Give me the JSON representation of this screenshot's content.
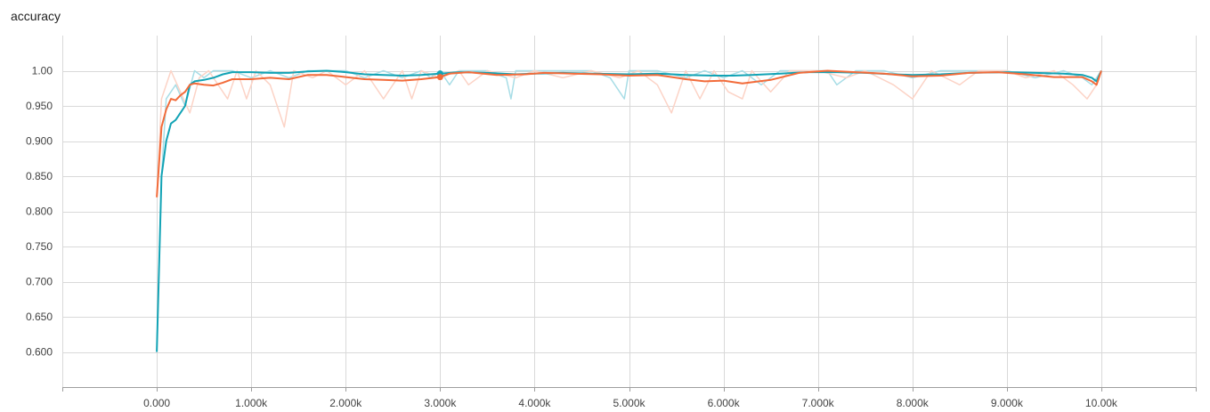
{
  "chart_data": {
    "type": "line",
    "title": "accuracy",
    "xlabel": "",
    "ylabel": "",
    "xlim": [
      -1000,
      11000
    ],
    "ylim": [
      0.55,
      1.05
    ],
    "grid": true,
    "legend": "none",
    "x_ticks": [
      {
        "value": 0,
        "label": "0.000"
      },
      {
        "value": 1000,
        "label": "1.000k"
      },
      {
        "value": 2000,
        "label": "2.000k"
      },
      {
        "value": 3000,
        "label": "3.000k"
      },
      {
        "value": 4000,
        "label": "4.000k"
      },
      {
        "value": 5000,
        "label": "5.000k"
      },
      {
        "value": 6000,
        "label": "6.000k"
      },
      {
        "value": 7000,
        "label": "7.000k"
      },
      {
        "value": 8000,
        "label": "8.000k"
      },
      {
        "value": 9000,
        "label": "9.000k"
      },
      {
        "value": 10000,
        "label": "10.00k"
      }
    ],
    "y_ticks": [
      {
        "value": 0.6,
        "label": "0.600"
      },
      {
        "value": 0.65,
        "label": "0.650"
      },
      {
        "value": 0.7,
        "label": "0.700"
      },
      {
        "value": 0.75,
        "label": "0.750"
      },
      {
        "value": 0.8,
        "label": "0.800"
      },
      {
        "value": 0.85,
        "label": "0.850"
      },
      {
        "value": 0.9,
        "label": "0.900"
      },
      {
        "value": 0.95,
        "label": "0.950"
      },
      {
        "value": 1.0,
        "label": "1.00"
      }
    ],
    "series": [
      {
        "color": "#12a3b5",
        "raw_color": "#a8dde6",
        "smoothed": [
          [
            0,
            0.6
          ],
          [
            50,
            0.85
          ],
          [
            100,
            0.9
          ],
          [
            150,
            0.925
          ],
          [
            200,
            0.93
          ],
          [
            250,
            0.94
          ],
          [
            300,
            0.95
          ],
          [
            350,
            0.98
          ],
          [
            400,
            0.985
          ],
          [
            500,
            0.987
          ],
          [
            600,
            0.99
          ],
          [
            700,
            0.995
          ],
          [
            800,
            0.998
          ],
          [
            1000,
            0.998
          ],
          [
            1200,
            0.997
          ],
          [
            1400,
            0.997
          ],
          [
            1600,
            0.999
          ],
          [
            1800,
            1.0
          ],
          [
            2000,
            0.998
          ],
          [
            2200,
            0.995
          ],
          [
            2400,
            0.994
          ],
          [
            2600,
            0.993
          ],
          [
            2800,
            0.994
          ],
          [
            3000,
            0.996
          ],
          [
            3200,
            0.998
          ],
          [
            3500,
            0.997
          ],
          [
            3800,
            0.995
          ],
          [
            4000,
            0.996
          ],
          [
            4300,
            0.997
          ],
          [
            4600,
            0.996
          ],
          [
            5000,
            0.995
          ],
          [
            5300,
            0.996
          ],
          [
            5600,
            0.994
          ],
          [
            5900,
            0.993
          ],
          [
            6100,
            0.993
          ],
          [
            6300,
            0.994
          ],
          [
            6600,
            0.996
          ],
          [
            6900,
            0.998
          ],
          [
            7200,
            0.998
          ],
          [
            7500,
            0.997
          ],
          [
            7800,
            0.995
          ],
          [
            8000,
            0.994
          ],
          [
            8300,
            0.995
          ],
          [
            8600,
            0.997
          ],
          [
            9000,
            0.998
          ],
          [
            9300,
            0.997
          ],
          [
            9600,
            0.996
          ],
          [
            9800,
            0.994
          ],
          [
            9900,
            0.99
          ],
          [
            9950,
            0.985
          ],
          [
            10000,
            1.0
          ]
        ],
        "raw": [
          [
            0,
            0.6
          ],
          [
            50,
            0.85
          ],
          [
            100,
            0.96
          ],
          [
            200,
            0.98
          ],
          [
            300,
            0.95
          ],
          [
            400,
            1.0
          ],
          [
            500,
            0.99
          ],
          [
            600,
            1.0
          ],
          [
            800,
            1.0
          ],
          [
            1000,
            0.99
          ],
          [
            1200,
            1.0
          ],
          [
            1400,
            0.99
          ],
          [
            1600,
            1.0
          ],
          [
            1800,
            1.0
          ],
          [
            2000,
            1.0
          ],
          [
            2200,
            0.99
          ],
          [
            2400,
            1.0
          ],
          [
            2600,
            0.99
          ],
          [
            2800,
            1.0
          ],
          [
            2900,
            0.99
          ],
          [
            3000,
            1.0
          ],
          [
            3100,
            0.98
          ],
          [
            3200,
            1.0
          ],
          [
            3500,
            1.0
          ],
          [
            3700,
            0.99
          ],
          [
            3750,
            0.96
          ],
          [
            3800,
            1.0
          ],
          [
            4000,
            1.0
          ],
          [
            4300,
            1.0
          ],
          [
            4600,
            1.0
          ],
          [
            4800,
            0.99
          ],
          [
            4950,
            0.96
          ],
          [
            5000,
            1.0
          ],
          [
            5300,
            1.0
          ],
          [
            5600,
            0.99
          ],
          [
            5800,
            1.0
          ],
          [
            6000,
            0.99
          ],
          [
            6200,
            1.0
          ],
          [
            6400,
            0.98
          ],
          [
            6600,
            1.0
          ],
          [
            6900,
            1.0
          ],
          [
            7100,
            1.0
          ],
          [
            7200,
            0.98
          ],
          [
            7400,
            1.0
          ],
          [
            7700,
            1.0
          ],
          [
            8000,
            0.99
          ],
          [
            8300,
            1.0
          ],
          [
            8600,
            1.0
          ],
          [
            9000,
            1.0
          ],
          [
            9300,
            0.99
          ],
          [
            9600,
            1.0
          ],
          [
            9800,
            0.99
          ],
          [
            9900,
            0.98
          ],
          [
            10000,
            1.0
          ]
        ]
      },
      {
        "color": "#f26b3a",
        "raw_color": "#fcd3c6",
        "smoothed": [
          [
            0,
            0.82
          ],
          [
            50,
            0.92
          ],
          [
            100,
            0.945
          ],
          [
            150,
            0.96
          ],
          [
            200,
            0.958
          ],
          [
            250,
            0.965
          ],
          [
            300,
            0.97
          ],
          [
            350,
            0.98
          ],
          [
            400,
            0.982
          ],
          [
            500,
            0.98
          ],
          [
            600,
            0.979
          ],
          [
            700,
            0.983
          ],
          [
            800,
            0.988
          ],
          [
            1000,
            0.988
          ],
          [
            1200,
            0.99
          ],
          [
            1400,
            0.988
          ],
          [
            1600,
            0.994
          ],
          [
            1800,
            0.994
          ],
          [
            2000,
            0.991
          ],
          [
            2200,
            0.988
          ],
          [
            2400,
            0.987
          ],
          [
            2600,
            0.986
          ],
          [
            2800,
            0.988
          ],
          [
            3000,
            0.991
          ],
          [
            3100,
            0.996
          ],
          [
            3300,
            0.998
          ],
          [
            3600,
            0.994
          ],
          [
            3900,
            0.995
          ],
          [
            4100,
            0.997
          ],
          [
            4400,
            0.996
          ],
          [
            4700,
            0.995
          ],
          [
            5000,
            0.993
          ],
          [
            5300,
            0.994
          ],
          [
            5600,
            0.988
          ],
          [
            5800,
            0.985
          ],
          [
            6000,
            0.986
          ],
          [
            6200,
            0.982
          ],
          [
            6500,
            0.987
          ],
          [
            6800,
            0.997
          ],
          [
            7100,
            1.0
          ],
          [
            7400,
            0.998
          ],
          [
            7700,
            0.996
          ],
          [
            8000,
            0.992
          ],
          [
            8300,
            0.993
          ],
          [
            8600,
            0.997
          ],
          [
            8900,
            0.998
          ],
          [
            9200,
            0.995
          ],
          [
            9500,
            0.991
          ],
          [
            9800,
            0.991
          ],
          [
            9900,
            0.985
          ],
          [
            9950,
            0.98
          ],
          [
            10000,
            1.0
          ]
        ],
        "raw": [
          [
            0,
            0.82
          ],
          [
            50,
            0.96
          ],
          [
            150,
            1.0
          ],
          [
            250,
            0.97
          ],
          [
            350,
            0.94
          ],
          [
            450,
            0.99
          ],
          [
            550,
            1.0
          ],
          [
            650,
            0.98
          ],
          [
            750,
            0.96
          ],
          [
            850,
            1.0
          ],
          [
            950,
            0.96
          ],
          [
            1050,
            1.0
          ],
          [
            1200,
            0.98
          ],
          [
            1350,
            0.92
          ],
          [
            1450,
            1.0
          ],
          [
            1650,
            0.99
          ],
          [
            1800,
            1.0
          ],
          [
            2000,
            0.98
          ],
          [
            2200,
            1.0
          ],
          [
            2400,
            0.96
          ],
          [
            2600,
            1.0
          ],
          [
            2700,
            0.96
          ],
          [
            2800,
            1.0
          ],
          [
            3000,
            0.99
          ],
          [
            3200,
            1.0
          ],
          [
            3300,
            0.98
          ],
          [
            3500,
            1.0
          ],
          [
            3800,
            0.99
          ],
          [
            4000,
            1.0
          ],
          [
            4300,
            0.99
          ],
          [
            4600,
            1.0
          ],
          [
            4900,
            0.99
          ],
          [
            5100,
            1.0
          ],
          [
            5300,
            0.98
          ],
          [
            5450,
            0.94
          ],
          [
            5600,
            1.0
          ],
          [
            5750,
            0.96
          ],
          [
            5900,
            1.0
          ],
          [
            6050,
            0.97
          ],
          [
            6200,
            0.96
          ],
          [
            6300,
            1.0
          ],
          [
            6500,
            0.97
          ],
          [
            6700,
            1.0
          ],
          [
            7000,
            1.0
          ],
          [
            7300,
            0.99
          ],
          [
            7500,
            1.0
          ],
          [
            7800,
            0.98
          ],
          [
            8000,
            0.96
          ],
          [
            8200,
            1.0
          ],
          [
            8500,
            0.98
          ],
          [
            8700,
            1.0
          ],
          [
            9000,
            1.0
          ],
          [
            9200,
            0.99
          ],
          [
            9500,
            1.0
          ],
          [
            9700,
            0.98
          ],
          [
            9850,
            0.96
          ],
          [
            9950,
            0.98
          ],
          [
            10000,
            1.0
          ]
        ]
      }
    ],
    "markers": [
      {
        "x": 3000,
        "y": 0.996,
        "color": "#12a3b5"
      },
      {
        "x": 3000,
        "y": 0.991,
        "color": "#f26b3a"
      }
    ]
  }
}
